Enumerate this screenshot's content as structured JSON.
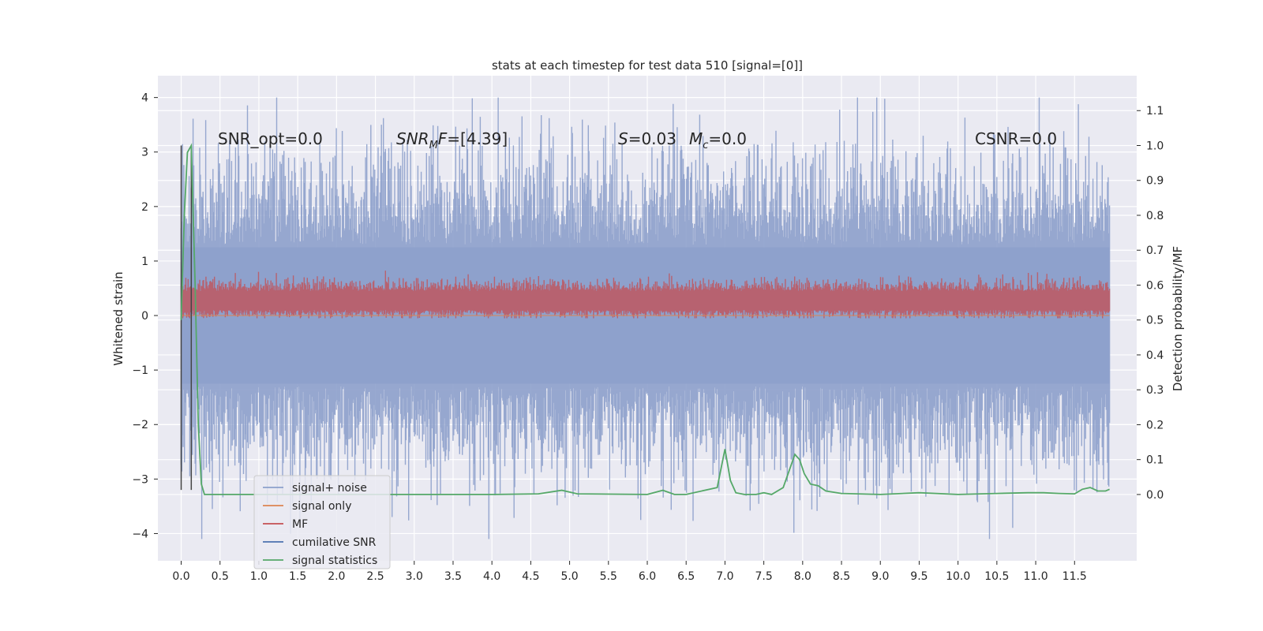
{
  "chart_data": {
    "type": "line",
    "title": "stats at each timestep for test data 510 [signal=[0]]",
    "xlabel": "",
    "ylabel_left": "Whitened strain",
    "ylabel_right": "Detection probability/MF",
    "xlim": [
      -0.3,
      12.3
    ],
    "ylim_left": [
      -4.5,
      4.4
    ],
    "ylim_right": [
      -0.19,
      1.2
    ],
    "x_ticks": [
      "0.0",
      "0.5",
      "1.0",
      "1.5",
      "2.0",
      "2.5",
      "3.0",
      "3.5",
      "4.0",
      "4.5",
      "5.0",
      "5.5",
      "6.0",
      "6.5",
      "7.0",
      "7.5",
      "8.0",
      "8.5",
      "9.0",
      "9.5",
      "10.0",
      "10.5",
      "11.0",
      "11.5"
    ],
    "y_ticks_left": [
      "4",
      "3",
      "2",
      "1",
      "0",
      "−1",
      "−2",
      "−3",
      "−4"
    ],
    "y_ticks_right": [
      "1.1",
      "1.0",
      "0.9",
      "0.8",
      "0.7",
      "0.6",
      "0.5",
      "0.4",
      "0.3",
      "0.2",
      "0.1",
      "0.0"
    ],
    "grid": true,
    "legend_position": "lower-left",
    "annotations": {
      "snr_opt": "SNR_opt=0.0",
      "snr_mf": "[4.39]",
      "snr_mf_symbol": "SNR",
      "snr_mf_sub": "M",
      "snr_mf_suffix": "F=",
      "s_symbol": "S",
      "s_value": "=0.03",
      "mc_symbol": "M",
      "mc_sub": "c",
      "mc_value": "=0.0",
      "csnr": "CSNR=0.0"
    },
    "series": [
      {
        "name": "signal+ noise",
        "color": "#8da0cb",
        "axis": "left",
        "description_values": {
          "envelope_min": -4.1,
          "envelope_max": 4.0,
          "typical_range": [
            -2.3,
            2.3
          ]
        }
      },
      {
        "name": "signal only",
        "color": "#dd8452",
        "axis": "left",
        "values_constant": 0.0
      },
      {
        "name": "MF",
        "color": "#c44e52",
        "axis": "left",
        "description_values": {
          "typical_range": [
            0.0,
            0.6
          ],
          "max": 1.0
        }
      },
      {
        "name": "cumilative SNR",
        "color": "#4c72b0",
        "axis": "left",
        "values_constant": 0.0
      },
      {
        "name": "signal statistics",
        "color": "#55a868",
        "axis": "right",
        "x": [
          0.0,
          0.04,
          0.08,
          0.13,
          0.18,
          0.22,
          0.26,
          0.3,
          0.4,
          1.0,
          2.0,
          3.0,
          4.0,
          4.6,
          4.9,
          5.1,
          6.0,
          6.2,
          6.35,
          6.5,
          6.9,
          7.0,
          7.07,
          7.14,
          7.25,
          7.4,
          7.5,
          7.6,
          7.75,
          7.9,
          7.96,
          8.02,
          8.1,
          8.2,
          8.3,
          8.5,
          9.0,
          9.5,
          10.0,
          10.5,
          10.9,
          11.1,
          11.3,
          11.5,
          11.6,
          11.7,
          11.8,
          11.9,
          11.95
        ],
        "values": [
          0.5,
          0.8,
          0.98,
          1.0,
          0.6,
          0.2,
          0.03,
          0.0,
          0.0,
          0.0,
          0.0,
          0.0,
          0.0,
          0.002,
          0.012,
          0.002,
          0.0,
          0.012,
          0.0,
          0.0,
          0.02,
          0.13,
          0.04,
          0.005,
          0.0,
          0.0,
          0.005,
          0.0,
          0.02,
          0.115,
          0.1,
          0.06,
          0.03,
          0.025,
          0.01,
          0.003,
          0.0,
          0.005,
          0.0,
          0.003,
          0.005,
          0.005,
          0.003,
          0.002,
          0.015,
          0.02,
          0.01,
          0.01,
          0.015
        ]
      }
    ],
    "vertical_markers": {
      "x": [
        0.0,
        0.13
      ],
      "color": "#444444"
    }
  }
}
